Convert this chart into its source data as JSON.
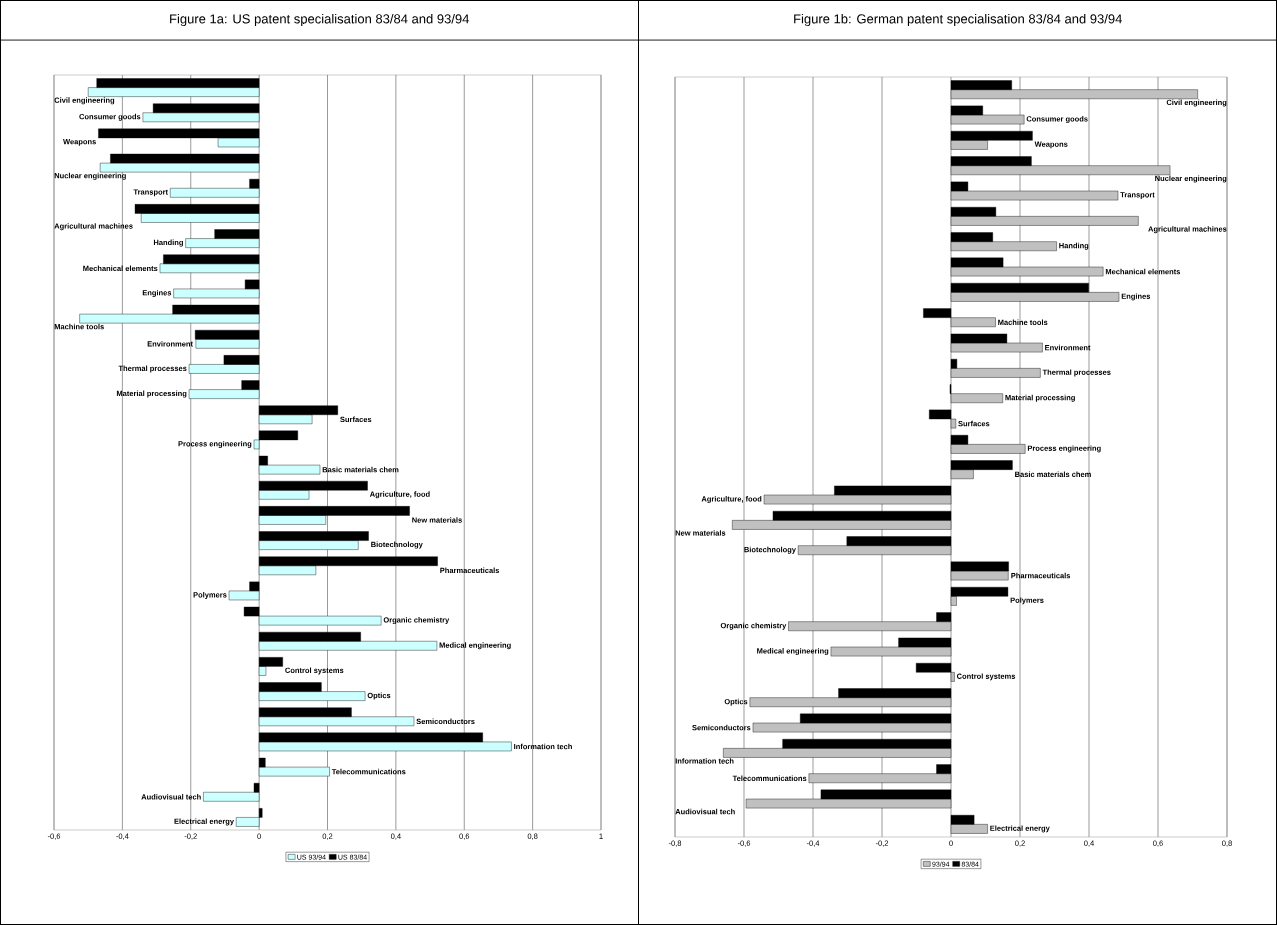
{
  "chart_data": [
    {
      "type": "bar",
      "orientation": "horizontal",
      "title": "Figure 1a: US patent specialisation 83/84 and 93/94",
      "categories": [
        "Civil engineering",
        "Consumer goods",
        "Weapons",
        "Nuclear engineering",
        "Transport",
        "Agricultural machines",
        "Handing",
        "Mechanical elements",
        "Engines",
        "Machine tools",
        "Environment",
        "Thermal processes",
        "Material processing",
        "Surfaces",
        "Process engineering",
        "Basic materials chem",
        "Agriculture, food",
        "New materials",
        "Biotechnology",
        "Pharmaceuticals",
        "Polymers",
        "Organic chemistry",
        "Medical engineering",
        "Control systems",
        "Optics",
        "Semiconductors",
        "Information tech",
        "Telecommunications",
        "Audiovisual tech",
        "Electrical energy"
      ],
      "series": [
        {
          "name": "US 93/94",
          "color": "#ccffff",
          "values": [
            -0.5,
            -0.34,
            -0.12,
            -0.465,
            -0.26,
            -0.345,
            -0.215,
            -0.29,
            -0.25,
            -0.525,
            -0.185,
            -0.205,
            -0.205,
            0.155,
            -0.015,
            0.178,
            0.146,
            0.195,
            0.29,
            0.166,
            -0.088,
            0.357,
            0.52,
            0.02,
            0.31,
            0.453,
            0.738,
            0.206,
            -0.163,
            -0.067
          ]
        },
        {
          "name": "US 83/84",
          "color": "#000000",
          "values": [
            -0.475,
            -0.31,
            -0.47,
            -0.435,
            -0.028,
            -0.363,
            -0.13,
            -0.28,
            -0.041,
            -0.253,
            -0.187,
            -0.103,
            -0.051,
            0.23,
            0.113,
            0.025,
            0.317,
            0.44,
            0.32,
            0.522,
            -0.028,
            -0.044,
            0.297,
            0.069,
            0.182,
            0.27,
            0.654,
            0.018,
            -0.015,
            0.009
          ]
        }
      ],
      "xlim": [
        -0.6,
        1
      ],
      "xticks": [
        {
          "value": -0.6,
          "label": "-0,6"
        },
        {
          "value": -0.4,
          "label": "-0,4"
        },
        {
          "value": -0.2,
          "label": "-0,2"
        },
        0,
        {
          "value": 0.2,
          "label": "0,2"
        },
        {
          "value": 0.4,
          "label": "0,4"
        },
        {
          "value": 0.6,
          "label": "0,6"
        },
        {
          "value": 0.8,
          "label": "0,8"
        },
        1
      ],
      "grid": "x",
      "legend": "bottom"
    },
    {
      "type": "bar",
      "orientation": "horizontal",
      "title": "Figure 1b: German patent specialisation 83/84 and 93/94",
      "categories": [
        "Civil engineering",
        "Consumer goods",
        "Weapons",
        "Nuclear engineering",
        "Transport",
        "Agricultural machines",
        "Handing",
        "Mechanical elements",
        "Engines",
        "Machine tools",
        "Environment",
        "Thermal processes",
        "Material processing",
        "Surfaces",
        "Process engineering",
        "Basic materials chem",
        "Agriculture, food",
        "New materials",
        "Biotechnology",
        "Pharmaceuticals",
        "Polymers",
        "Organic chemistry",
        "Medical engineering",
        "Control systems",
        "Optics",
        "Semiconductors",
        "Information tech",
        "Telecommunications",
        "Audiovisual tech",
        "Electrical energy"
      ],
      "series": [
        {
          "name": "93/94",
          "color": "#c0c0c0",
          "values": [
            0.715,
            0.212,
            0.106,
            0.635,
            0.484,
            0.543,
            0.306,
            0.441,
            0.487,
            0.129,
            0.265,
            0.259,
            0.15,
            0.014,
            0.215,
            0.065,
            -0.542,
            -0.634,
            -0.443,
            0.166,
            0.016,
            -0.471,
            -0.348,
            0.01,
            -0.583,
            -0.574,
            -0.66,
            -0.412,
            -0.594,
            0.106
          ]
        },
        {
          "name": "83/84",
          "color": "#000000",
          "values": [
            0.176,
            0.092,
            0.236,
            0.233,
            0.049,
            0.13,
            0.121,
            0.151,
            0.399,
            -0.08,
            0.162,
            0.017,
            -0.003,
            -0.063,
            0.049,
            0.178,
            -0.338,
            -0.516,
            -0.302,
            0.167,
            0.165,
            -0.042,
            -0.152,
            -0.101,
            -0.326,
            -0.437,
            -0.488,
            -0.042,
            -0.377,
            0.067
          ]
        }
      ],
      "xlim": [
        -0.8,
        0.8
      ],
      "xticks": [
        {
          "value": -0.8,
          "label": "-0,8"
        },
        {
          "value": -0.6,
          "label": "-0,6"
        },
        {
          "value": -0.4,
          "label": "-0,4"
        },
        {
          "value": -0.2,
          "label": "-0,2"
        },
        0,
        {
          "value": 0.2,
          "label": "0,2"
        },
        {
          "value": 0.4,
          "label": "0,4"
        },
        {
          "value": 0.6,
          "label": "0,6"
        },
        {
          "value": 0.8,
          "label": "0,8"
        }
      ],
      "grid": "x",
      "legend": "bottom"
    }
  ]
}
